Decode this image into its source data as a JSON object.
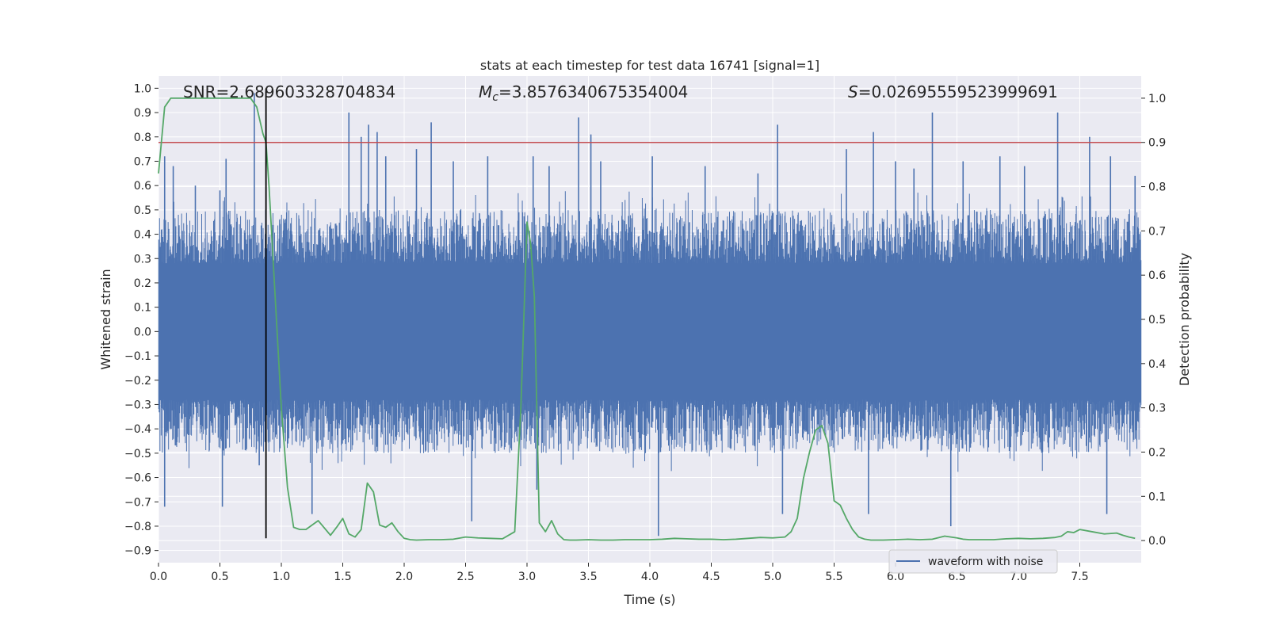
{
  "chart_data": {
    "type": "line",
    "title": "stats at each timestep for test data 16741 [signal=1]",
    "xlabel": "Time (s)",
    "ylabel": "Whitened strain",
    "y2label": "Detection probability",
    "xlim": [
      0.0,
      8.0
    ],
    "ylim": [
      -0.95,
      1.05
    ],
    "y2lim": [
      -0.05,
      1.05
    ],
    "x_ticks": [
      0.0,
      0.5,
      1.0,
      1.5,
      2.0,
      2.5,
      3.0,
      3.5,
      4.0,
      4.5,
      5.0,
      5.5,
      6.0,
      6.5,
      7.0,
      7.5
    ],
    "y_ticks": [
      1.0,
      0.9,
      0.8,
      0.7,
      0.6,
      0.5,
      0.4,
      0.3,
      0.2,
      0.1,
      0.0,
      -0.1,
      -0.2,
      -0.3,
      -0.4,
      -0.5,
      -0.6,
      -0.7,
      -0.8,
      -0.9
    ],
    "y2_ticks": [
      1.0,
      0.9,
      0.8,
      0.7,
      0.6,
      0.5,
      0.4,
      0.3,
      0.2,
      0.1,
      0.0
    ],
    "grid": true,
    "legend": {
      "placement": "lower-right",
      "entries": [
        "waveform with noise"
      ]
    },
    "annotations": {
      "snr": "SNR=2.689603328704834",
      "mc_symbol": "M",
      "mc_sub": "c",
      "mc_value": "=3.8576340675354004",
      "s_symbol": "S",
      "s_value": "=0.02695559523999691"
    },
    "threshold_line": {
      "axis": "y2",
      "value": 0.9,
      "color": "#c44e52"
    },
    "marker_line": {
      "x": 0.875,
      "color": "#000000",
      "y_range": [
        -0.85,
        1.0
      ]
    },
    "series": [
      {
        "name": "waveform with noise",
        "axis": "y",
        "color": "#4c72b0",
        "style": "dense-noise",
        "core_band": [
          -0.28,
          0.28
        ],
        "typical_extent": [
          -0.5,
          0.5
        ],
        "spikes": [
          {
            "x": 0.05,
            "y": 0.72
          },
          {
            "x": 0.12,
            "y": 0.68
          },
          {
            "x": 0.05,
            "y": -0.72
          },
          {
            "x": 0.3,
            "y": 0.6
          },
          {
            "x": 0.5,
            "y": 0.58
          },
          {
            "x": 0.52,
            "y": -0.72
          },
          {
            "x": 0.78,
            "y": 0.98
          },
          {
            "x": 0.55,
            "y": 0.71
          },
          {
            "x": 0.82,
            "y": -0.55
          },
          {
            "x": 1.25,
            "y": -0.75
          },
          {
            "x": 1.55,
            "y": 0.9
          },
          {
            "x": 1.65,
            "y": 0.8
          },
          {
            "x": 1.71,
            "y": 0.85
          },
          {
            "x": 1.78,
            "y": 0.82
          },
          {
            "x": 1.85,
            "y": 0.72
          },
          {
            "x": 2.1,
            "y": 0.75
          },
          {
            "x": 2.22,
            "y": 0.86
          },
          {
            "x": 2.4,
            "y": 0.7
          },
          {
            "x": 2.55,
            "y": -0.78
          },
          {
            "x": 2.68,
            "y": 0.72
          },
          {
            "x": 3.05,
            "y": 0.72
          },
          {
            "x": 3.08,
            "y": -0.65
          },
          {
            "x": 3.18,
            "y": 0.68
          },
          {
            "x": 3.42,
            "y": 0.88
          },
          {
            "x": 3.52,
            "y": 0.81
          },
          {
            "x": 3.6,
            "y": 0.7
          },
          {
            "x": 4.02,
            "y": 0.72
          },
          {
            "x": 4.07,
            "y": -0.84
          },
          {
            "x": 4.45,
            "y": 0.68
          },
          {
            "x": 4.88,
            "y": 0.65
          },
          {
            "x": 5.04,
            "y": 0.85
          },
          {
            "x": 5.08,
            "y": -0.75
          },
          {
            "x": 5.6,
            "y": 0.75
          },
          {
            "x": 5.78,
            "y": -0.75
          },
          {
            "x": 5.82,
            "y": 0.82
          },
          {
            "x": 6.0,
            "y": 0.7
          },
          {
            "x": 6.15,
            "y": 0.67
          },
          {
            "x": 6.3,
            "y": 0.9
          },
          {
            "x": 6.45,
            "y": -0.8
          },
          {
            "x": 6.55,
            "y": 0.7
          },
          {
            "x": 6.85,
            "y": 0.72
          },
          {
            "x": 7.05,
            "y": 0.68
          },
          {
            "x": 7.32,
            "y": 0.9
          },
          {
            "x": 7.58,
            "y": 0.8
          },
          {
            "x": 7.72,
            "y": -0.75
          },
          {
            "x": 7.75,
            "y": 0.72
          },
          {
            "x": 7.95,
            "y": 0.64
          }
        ]
      },
      {
        "name": "",
        "axis": "y2",
        "color": "#55a868",
        "x": [
          0.0,
          0.05,
          0.1,
          0.15,
          0.2,
          0.3,
          0.4,
          0.5,
          0.6,
          0.7,
          0.75,
          0.8,
          0.85,
          0.875,
          0.9,
          0.95,
          1.0,
          1.05,
          1.1,
          1.15,
          1.2,
          1.3,
          1.4,
          1.45,
          1.5,
          1.55,
          1.6,
          1.65,
          1.7,
          1.75,
          1.8,
          1.85,
          1.9,
          1.95,
          2.0,
          2.05,
          2.1,
          2.2,
          2.3,
          2.4,
          2.5,
          2.6,
          2.7,
          2.8,
          2.9,
          2.95,
          3.0,
          3.03,
          3.06,
          3.1,
          3.15,
          3.2,
          3.25,
          3.3,
          3.35,
          3.4,
          3.5,
          3.6,
          3.7,
          3.8,
          3.9,
          4.0,
          4.1,
          4.2,
          4.3,
          4.4,
          4.5,
          4.6,
          4.7,
          4.8,
          4.9,
          5.0,
          5.1,
          5.15,
          5.2,
          5.25,
          5.3,
          5.35,
          5.4,
          5.45,
          5.5,
          5.55,
          5.6,
          5.65,
          5.7,
          5.75,
          5.8,
          5.85,
          5.9,
          6.0,
          6.1,
          6.2,
          6.3,
          6.4,
          6.5,
          6.55,
          6.6,
          6.7,
          6.8,
          6.9,
          7.0,
          7.1,
          7.2,
          7.3,
          7.35,
          7.4,
          7.45,
          7.5,
          7.6,
          7.7,
          7.8,
          7.85,
          7.9,
          7.95
        ],
        "values": [
          0.83,
          0.98,
          1.0,
          1.0,
          1.0,
          1.0,
          1.0,
          1.0,
          1.0,
          1.0,
          1.0,
          0.98,
          0.92,
          0.9,
          0.8,
          0.55,
          0.3,
          0.12,
          0.03,
          0.025,
          0.025,
          0.045,
          0.012,
          0.03,
          0.05,
          0.015,
          0.008,
          0.025,
          0.13,
          0.11,
          0.035,
          0.03,
          0.04,
          0.02,
          0.005,
          0.002,
          0.001,
          0.002,
          0.002,
          0.003,
          0.008,
          0.006,
          0.005,
          0.004,
          0.02,
          0.3,
          0.72,
          0.67,
          0.55,
          0.04,
          0.02,
          0.045,
          0.015,
          0.002,
          0.001,
          0.001,
          0.002,
          0.001,
          0.001,
          0.002,
          0.002,
          0.002,
          0.003,
          0.005,
          0.004,
          0.003,
          0.003,
          0.002,
          0.003,
          0.005,
          0.007,
          0.006,
          0.008,
          0.02,
          0.05,
          0.14,
          0.2,
          0.25,
          0.26,
          0.22,
          0.09,
          0.08,
          0.05,
          0.025,
          0.008,
          0.003,
          0.001,
          0.001,
          0.001,
          0.002,
          0.003,
          0.002,
          0.003,
          0.01,
          0.006,
          0.003,
          0.002,
          0.002,
          0.002,
          0.004,
          0.005,
          0.004,
          0.005,
          0.007,
          0.01,
          0.02,
          0.018,
          0.025,
          0.02,
          0.015,
          0.017,
          0.012,
          0.008,
          0.005
        ]
      }
    ]
  }
}
